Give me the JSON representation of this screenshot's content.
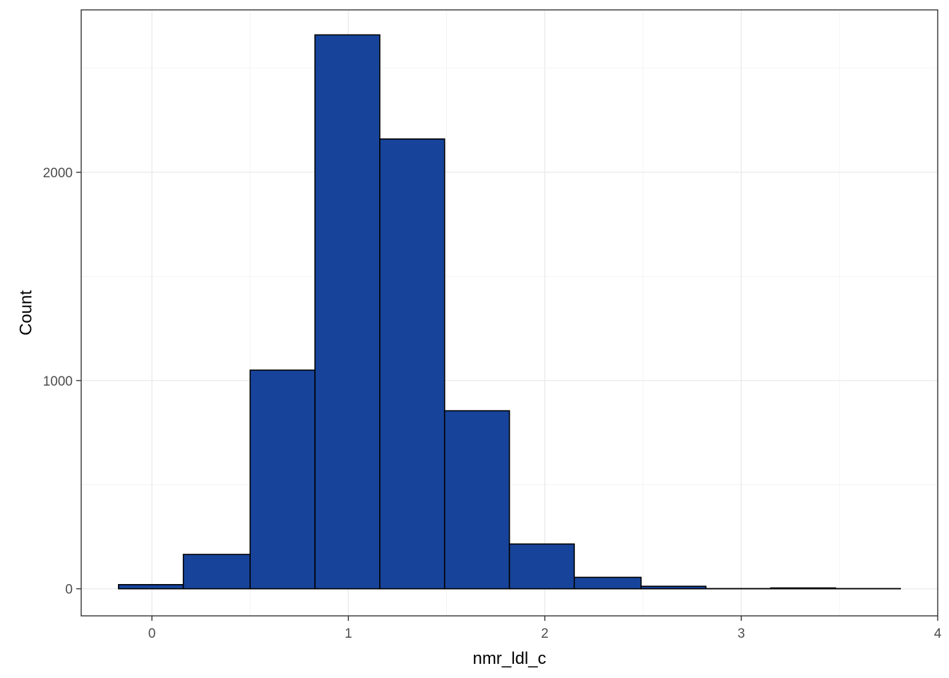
{
  "chart_data": {
    "type": "bar",
    "subtype": "histogram",
    "xlabel": "nmr_ldl_c",
    "ylabel": "Count",
    "xlim": [
      -0.36,
      4.0
    ],
    "ylim": [
      -130,
      2780
    ],
    "x_ticks": [
      0,
      1,
      2,
      3,
      4
    ],
    "y_ticks": [
      0,
      1000,
      2000
    ],
    "bins": [
      {
        "x0": -0.17,
        "x1": 0.16,
        "count": 20
      },
      {
        "x0": 0.16,
        "x1": 0.5,
        "count": 165
      },
      {
        "x0": 0.5,
        "x1": 0.83,
        "count": 1050
      },
      {
        "x0": 0.83,
        "x1": 1.16,
        "count": 2660
      },
      {
        "x0": 1.16,
        "x1": 1.49,
        "count": 2160
      },
      {
        "x0": 1.49,
        "x1": 1.82,
        "count": 855
      },
      {
        "x0": 1.82,
        "x1": 2.15,
        "count": 215
      },
      {
        "x0": 2.15,
        "x1": 2.49,
        "count": 55
      },
      {
        "x0": 2.49,
        "x1": 2.82,
        "count": 12
      },
      {
        "x0": 2.82,
        "x1": 3.15,
        "count": 1
      },
      {
        "x0": 3.15,
        "x1": 3.48,
        "count": 4
      },
      {
        "x0": 3.48,
        "x1": 3.81,
        "count": 1
      }
    ],
    "bar_fill": "#17449a",
    "bar_outline": "#000000",
    "theme": "bw",
    "grid": true,
    "legend": false
  }
}
